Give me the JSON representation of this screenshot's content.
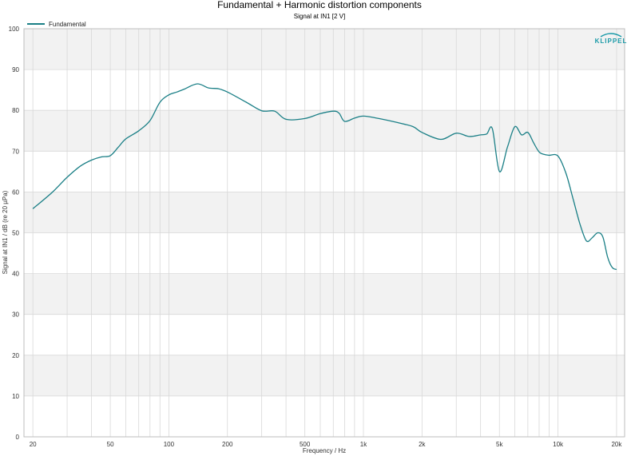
{
  "chart_data": {
    "type": "line",
    "title": "Fundamental + Harmonic distortion components",
    "subtitle": "Signal at IN1 [2 V]",
    "xlabel": "Frequency / Hz",
    "ylabel": "Signal at IN1 / dB (re 20 µPa)",
    "x_scale": "log",
    "xlim": [
      18,
      22000
    ],
    "ylim": [
      0,
      100
    ],
    "grid": true,
    "legend_position": "top-left",
    "x_tick_values": [
      20,
      50,
      100,
      200,
      500,
      1000,
      2000,
      5000,
      10000,
      20000
    ],
    "x_tick_labels": [
      "20",
      "50",
      "100",
      "200",
      "500",
      "1k",
      "2k",
      "5k",
      "10k",
      "20k"
    ],
    "y_ticks": [
      0,
      10,
      20,
      30,
      40,
      50,
      60,
      70,
      80,
      90,
      100
    ],
    "series": [
      {
        "name": "Fundamental",
        "color": "#1a7f86",
        "x": [
          20,
          25,
          30,
          35,
          40,
          45,
          50,
          55,
          60,
          70,
          80,
          90,
          100,
          110,
          120,
          140,
          160,
          180,
          200,
          250,
          300,
          350,
          400,
          500,
          600,
          700,
          750,
          800,
          900,
          1000,
          1200,
          1500,
          1800,
          2000,
          2500,
          3000,
          3500,
          4000,
          4300,
          4600,
          5000,
          5500,
          6000,
          6500,
          7000,
          7500,
          8000,
          8500,
          9000,
          10000,
          11000,
          12000,
          13000,
          14000,
          15000,
          16000,
          17000,
          18000,
          19000,
          20000
        ],
        "y": [
          55.9,
          59.8,
          63.6,
          66.3,
          67.8,
          68.6,
          68.9,
          71.0,
          73.0,
          75.0,
          77.5,
          82.0,
          83.8,
          84.5,
          85.2,
          86.5,
          85.5,
          85.3,
          84.5,
          82.0,
          79.9,
          79.8,
          77.8,
          78.0,
          79.2,
          79.8,
          79.3,
          77.3,
          78.1,
          78.6,
          78.0,
          77.0,
          76.0,
          74.6,
          72.9,
          74.4,
          73.6,
          74.0,
          74.2,
          75.5,
          65.0,
          71.0,
          76.0,
          74.0,
          74.6,
          72.0,
          69.8,
          69.2,
          69.0,
          68.8,
          64.5,
          58.0,
          52.0,
          48.0,
          48.8,
          50.0,
          49.0,
          44.0,
          41.5,
          41.0
        ]
      }
    ]
  },
  "logo": {
    "text": "KLIPPEL",
    "color": "#1a9aa8"
  }
}
